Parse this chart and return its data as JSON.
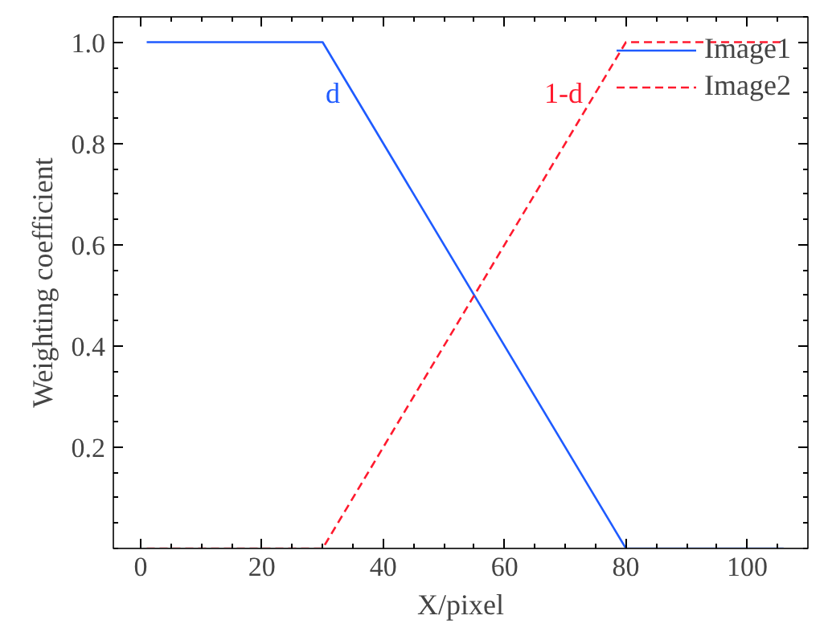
{
  "chart_data": {
    "type": "line",
    "xlabel": "X/pixel",
    "ylabel": "Weighting coefficient",
    "xlim": [
      -4.5,
      110
    ],
    "ylim": [
      0,
      1.05
    ],
    "xticks": [
      0,
      20,
      40,
      60,
      80,
      100
    ],
    "yticks": [
      0.2,
      0.4,
      0.6,
      0.8,
      {
        "value": 1,
        "label": "1.0"
      }
    ],
    "series": [
      {
        "name": "Image1",
        "color": "#1f5bff",
        "line_style": "solid",
        "x": [
          1,
          30,
          80,
          106
        ],
        "values": [
          1,
          1,
          0,
          0
        ]
      },
      {
        "name": "Image2",
        "color": "#ff1a2e",
        "line_style": "dashed",
        "x": [
          1,
          30,
          80,
          106
        ],
        "values": [
          0,
          0,
          1,
          1
        ]
      }
    ],
    "annotations": [
      "d",
      "1-d"
    ],
    "legend": "top right",
    "grid": false
  }
}
